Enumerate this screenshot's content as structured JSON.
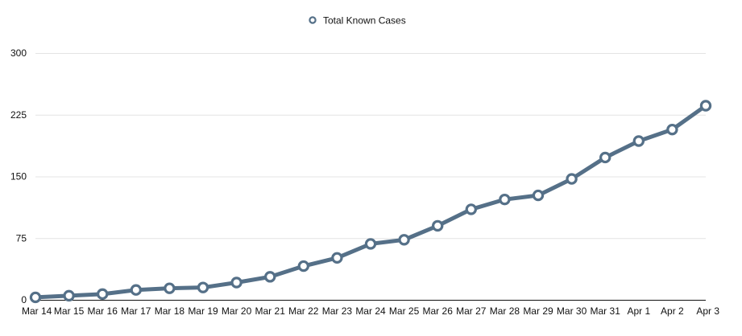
{
  "chart_data": {
    "type": "line",
    "title": "",
    "xlabel": "",
    "ylabel": "",
    "categories": [
      "Mar 14",
      "Mar 15",
      "Mar 16",
      "Mar 17",
      "Mar 18",
      "Mar 19",
      "Mar 20",
      "Mar 21",
      "Mar 22",
      "Mar 23",
      "Mar 24",
      "Mar 25",
      "Mar 26",
      "Mar 27",
      "Mar 28",
      "Mar 29",
      "Mar 30",
      "Mar 31",
      "Apr 1",
      "Apr 2",
      "Apr 3"
    ],
    "series": [
      {
        "name": "Total Known Cases",
        "color": "#557088",
        "values": [
          3,
          5,
          7,
          12,
          14,
          15,
          21,
          28,
          41,
          51,
          68,
          73,
          90,
          110,
          122,
          127,
          147,
          173,
          193,
          207,
          236
        ]
      }
    ],
    "ylim": [
      0,
      300
    ],
    "yticks": [
      0,
      75,
      150,
      225,
      300
    ],
    "ytick_labels": [
      "0",
      "75",
      "150",
      "225",
      "300"
    ],
    "grid": true,
    "legend_position": "top-center"
  }
}
